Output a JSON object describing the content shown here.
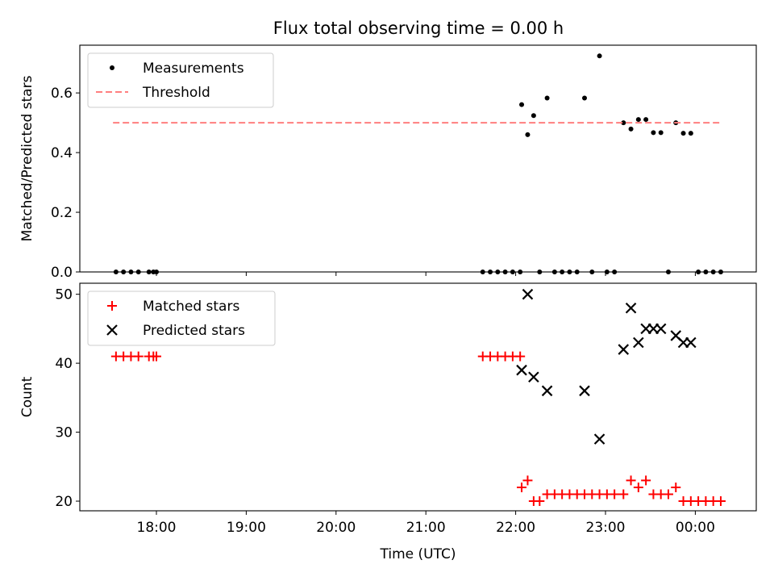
{
  "title": "Flux total observing time = 0.00 h",
  "chart_data": [
    {
      "type": "scatter",
      "ylabel": "Matched/Predicted stars",
      "ylim": [
        0,
        0.76
      ],
      "yticks": [
        "0.0",
        "0.2",
        "0.4",
        "0.6"
      ],
      "ytick_values": [
        0,
        0.2,
        0.4,
        0.6
      ],
      "legend_position": "top-left",
      "series": [
        {
          "name": "Measurements",
          "marker": "dot",
          "color": "#000000",
          "points": [
            [
              "17:33",
              0
            ],
            [
              "17:38",
              0
            ],
            [
              "17:43",
              0
            ],
            [
              "17:48",
              0
            ],
            [
              "17:55",
              0
            ],
            [
              "17:58",
              0
            ],
            [
              "18:00",
              0
            ],
            [
              "21:38",
              0
            ],
            [
              "21:43",
              0
            ],
            [
              "21:48",
              0
            ],
            [
              "21:53",
              0
            ],
            [
              "21:58",
              0
            ],
            [
              "22:03",
              0
            ],
            [
              "22:04",
              0.561
            ],
            [
              "22:08",
              0.46
            ],
            [
              "22:12",
              0.524
            ],
            [
              "22:16",
              0
            ],
            [
              "22:21",
              0.583
            ],
            [
              "22:26",
              0
            ],
            [
              "22:31",
              0
            ],
            [
              "22:36",
              0
            ],
            [
              "22:41",
              0
            ],
            [
              "22:46",
              0.583
            ],
            [
              "22:51",
              0
            ],
            [
              "22:56",
              0.724
            ],
            [
              "23:01",
              0
            ],
            [
              "23:06",
              0
            ],
            [
              "23:12",
              0.5
            ],
            [
              "23:17",
              0.479
            ],
            [
              "23:22",
              0.511
            ],
            [
              "23:27",
              0.511
            ],
            [
              "23:32",
              0.467
            ],
            [
              "23:37",
              0.467
            ],
            [
              "23:42",
              0
            ],
            [
              "23:47",
              0.5
            ],
            [
              "23:52",
              0.465
            ],
            [
              "23:57",
              0.465
            ],
            [
              "00:02",
              0
            ],
            [
              "00:07",
              0
            ],
            [
              "00:12",
              0
            ],
            [
              "00:17",
              0
            ]
          ]
        },
        {
          "name": "Threshold",
          "style": "dashed",
          "color": "#ff7f7f",
          "points": [
            [
              "17:31",
              0.5
            ],
            [
              "00:17",
              0.5
            ]
          ]
        }
      ]
    },
    {
      "type": "scatter",
      "xlabel": "Time (UTC)",
      "ylabel": "Count",
      "ylim": [
        18.6,
        51.6
      ],
      "yticks": [
        "20",
        "30",
        "40",
        "50"
      ],
      "ytick_values": [
        20,
        30,
        40,
        50
      ],
      "xticks": [
        "18:00",
        "19:00",
        "20:00",
        "21:00",
        "22:00",
        "23:00",
        "00:00"
      ],
      "legend_position": "top-left",
      "series": [
        {
          "name": "Matched stars",
          "marker": "plus",
          "color": "#ff0000",
          "points": [
            [
              "17:33",
              41
            ],
            [
              "17:38",
              41
            ],
            [
              "17:43",
              41
            ],
            [
              "17:48",
              41
            ],
            [
              "17:55",
              41
            ],
            [
              "17:58",
              41
            ],
            [
              "18:00",
              41
            ],
            [
              "21:38",
              41
            ],
            [
              "21:43",
              41
            ],
            [
              "21:48",
              41
            ],
            [
              "21:53",
              41
            ],
            [
              "21:58",
              41
            ],
            [
              "22:03",
              41
            ],
            [
              "22:04",
              22
            ],
            [
              "22:08",
              23
            ],
            [
              "22:12",
              20
            ],
            [
              "22:16",
              20
            ],
            [
              "22:21",
              21
            ],
            [
              "22:26",
              21
            ],
            [
              "22:31",
              21
            ],
            [
              "22:36",
              21
            ],
            [
              "22:41",
              21
            ],
            [
              "22:46",
              21
            ],
            [
              "22:51",
              21
            ],
            [
              "22:56",
              21
            ],
            [
              "23:01",
              21
            ],
            [
              "23:06",
              21
            ],
            [
              "23:12",
              21
            ],
            [
              "23:17",
              23
            ],
            [
              "23:22",
              22
            ],
            [
              "23:27",
              23
            ],
            [
              "23:32",
              21
            ],
            [
              "23:37",
              21
            ],
            [
              "23:42",
              21
            ],
            [
              "23:47",
              22
            ],
            [
              "23:52",
              20
            ],
            [
              "23:57",
              20
            ],
            [
              "00:02",
              20
            ],
            [
              "00:07",
              20
            ],
            [
              "00:12",
              20
            ],
            [
              "00:17",
              20
            ]
          ]
        },
        {
          "name": "Predicted stars",
          "marker": "x",
          "color": "#000000",
          "points": [
            [
              "22:04",
              39
            ],
            [
              "22:08",
              50
            ],
            [
              "22:12",
              38
            ],
            [
              "22:21",
              36
            ],
            [
              "22:46",
              36
            ],
            [
              "22:56",
              29
            ],
            [
              "23:12",
              42
            ],
            [
              "23:17",
              48
            ],
            [
              "23:22",
              43
            ],
            [
              "23:27",
              45
            ],
            [
              "23:32",
              45
            ],
            [
              "23:37",
              45
            ],
            [
              "23:47",
              44
            ],
            [
              "23:52",
              43
            ],
            [
              "23:57",
              43
            ]
          ]
        }
      ]
    }
  ]
}
